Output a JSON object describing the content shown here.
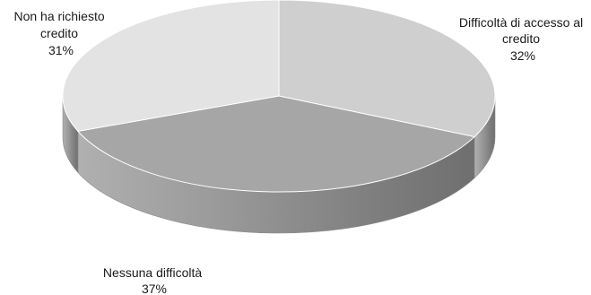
{
  "chart_data": {
    "type": "pie",
    "title": "",
    "slices": [
      {
        "label_lines": [
          "Difficoltà di accesso al",
          "credito"
        ],
        "label": "Difficoltà di accesso al credito",
        "value": 32,
        "value_label": "32%",
        "top_color": "#cfcfcf",
        "side_color": "#7a7a7a"
      },
      {
        "label_lines": [
          "Nessuna difficoltà"
        ],
        "label": "Nessuna difficoltà",
        "value": 37,
        "value_label": "37%",
        "top_color": "#a6a6a6",
        "side_color": "#8a8a8a"
      },
      {
        "label_lines": [
          "Non ha richiesto",
          "credito"
        ],
        "label": "Non ha richiesto credito",
        "value": 31,
        "value_label": "31%",
        "top_color": "#e3e3e3",
        "side_color": "#9c9c9c"
      }
    ],
    "style": "3d",
    "legend": "none"
  }
}
